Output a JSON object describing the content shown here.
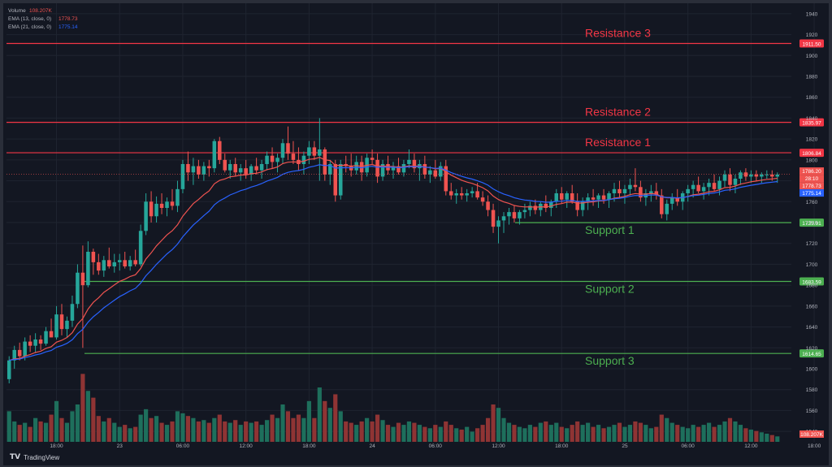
{
  "brand": {
    "name": "TradingView",
    "logo": "TV"
  },
  "legend": {
    "volume": {
      "label": "Volume",
      "value": "108.207K",
      "color": "#ef5350"
    },
    "ema13": {
      "label": "EMA (13, close, 0)",
      "value": "1778.73",
      "color": "#ef5350"
    },
    "ema21": {
      "label": "EMA (21, close, 0)",
      "value": "1775.14",
      "color": "#2962ff"
    }
  },
  "colors": {
    "up": "#26a69a",
    "down": "#ef5350",
    "vol_up": "#1e6f5c",
    "vol_down": "#8f3434",
    "support": "#4caf50",
    "resistance": "#f23645",
    "bg": "#131722",
    "grid": "#1f2430",
    "text": "#b2b5be"
  },
  "chart_data": {
    "type": "candlestick",
    "ylim": [
      1530,
      1950
    ],
    "y_ticks": [
      1540,
      1560,
      1580,
      1600,
      1620,
      1640,
      1660,
      1680,
      1700,
      1720,
      1740,
      1760,
      1780,
      1800,
      1820,
      1840,
      1860,
      1880,
      1900,
      1920,
      1940
    ],
    "x_ticks": [
      {
        "label": "18:00",
        "i": 9
      },
      {
        "label": "23",
        "i": 21
      },
      {
        "label": "06:00",
        "i": 33
      },
      {
        "label": "12:00",
        "i": 45
      },
      {
        "label": "18:00",
        "i": 57
      },
      {
        "label": "24",
        "i": 69
      },
      {
        "label": "06:00",
        "i": 81
      },
      {
        "label": "12:00",
        "i": 93
      },
      {
        "label": "18:00",
        "i": 105
      },
      {
        "label": "25",
        "i": 117
      },
      {
        "label": "06:00",
        "i": 129
      },
      {
        "label": "12:00",
        "i": 141
      },
      {
        "label": "18:00",
        "i": 153
      }
    ],
    "levels": [
      {
        "name": "Resistance 3",
        "value": 1911.5,
        "label": "1911.50",
        "kind": "resistance"
      },
      {
        "name": "Resistance 2",
        "value": 1835.97,
        "label": "1835.97",
        "kind": "resistance"
      },
      {
        "name": "Resistance 1",
        "value": 1806.84,
        "label": "1806.84",
        "kind": "resistance"
      },
      {
        "name": "Support 1",
        "value": 1739.91,
        "label": "1739.91",
        "kind": "support"
      },
      {
        "name": "Support 2",
        "value": 1683.59,
        "label": "1683.59",
        "kind": "support"
      },
      {
        "name": "Support 3",
        "value": 1614.65,
        "label": "1614.65",
        "kind": "support"
      }
    ],
    "price_labels": [
      {
        "value": 1786.2,
        "label": "1786.20",
        "color": "#ef5350"
      },
      {
        "value": 1782.0,
        "label": "28:10",
        "color": "#ef5350"
      },
      {
        "value": 1778.73,
        "label": "1778.73",
        "color": "#ef5350"
      },
      {
        "value": 1775.14,
        "label": "1775.14",
        "color": "#2962ff"
      }
    ],
    "volume_label": "108.207K",
    "volume_max": 110,
    "candles": [
      [
        1590,
        1612,
        1586,
        1608,
        45
      ],
      [
        1608,
        1622,
        1600,
        1618,
        30
      ],
      [
        1618,
        1625,
        1608,
        1612,
        25
      ],
      [
        1612,
        1630,
        1608,
        1626,
        28
      ],
      [
        1626,
        1632,
        1616,
        1622,
        22
      ],
      [
        1622,
        1634,
        1615,
        1628,
        35
      ],
      [
        1628,
        1632,
        1618,
        1624,
        30
      ],
      [
        1624,
        1640,
        1622,
        1636,
        28
      ],
      [
        1636,
        1648,
        1630,
        1630,
        40
      ],
      [
        1630,
        1660,
        1628,
        1652,
        60
      ],
      [
        1652,
        1662,
        1632,
        1638,
        35
      ],
      [
        1638,
        1650,
        1630,
        1646,
        28
      ],
      [
        1646,
        1670,
        1640,
        1662,
        45
      ],
      [
        1662,
        1700,
        1658,
        1692,
        55
      ],
      [
        1692,
        1718,
        1620,
        1680,
        100
      ],
      [
        1680,
        1722,
        1678,
        1712,
        75
      ],
      [
        1712,
        1715,
        1690,
        1702,
        65
      ],
      [
        1702,
        1710,
        1690,
        1694,
        38
      ],
      [
        1694,
        1708,
        1688,
        1704,
        30
      ],
      [
        1704,
        1716,
        1696,
        1698,
        35
      ],
      [
        1698,
        1710,
        1692,
        1702,
        28
      ],
      [
        1702,
        1710,
        1694,
        1704,
        22
      ],
      [
        1704,
        1712,
        1696,
        1698,
        25
      ],
      [
        1698,
        1708,
        1694,
        1704,
        20
      ],
      [
        1704,
        1714,
        1698,
        1700,
        22
      ],
      [
        1700,
        1738,
        1698,
        1732,
        40
      ],
      [
        1732,
        1768,
        1728,
        1760,
        48
      ],
      [
        1760,
        1770,
        1740,
        1746,
        35
      ],
      [
        1746,
        1765,
        1740,
        1758,
        38
      ],
      [
        1758,
        1768,
        1748,
        1754,
        28
      ],
      [
        1754,
        1764,
        1746,
        1760,
        25
      ],
      [
        1760,
        1772,
        1752,
        1756,
        30
      ],
      [
        1756,
        1780,
        1750,
        1772,
        45
      ],
      [
        1772,
        1800,
        1768,
        1796,
        42
      ],
      [
        1796,
        1808,
        1780,
        1788,
        38
      ],
      [
        1788,
        1802,
        1776,
        1794,
        35
      ],
      [
        1794,
        1800,
        1782,
        1786,
        30
      ],
      [
        1786,
        1798,
        1780,
        1794,
        32
      ],
      [
        1794,
        1800,
        1784,
        1792,
        28
      ],
      [
        1792,
        1820,
        1788,
        1818,
        35
      ],
      [
        1818,
        1822,
        1796,
        1800,
        40
      ],
      [
        1800,
        1806,
        1788,
        1790,
        30
      ],
      [
        1790,
        1800,
        1782,
        1796,
        28
      ],
      [
        1796,
        1802,
        1784,
        1788,
        32
      ],
      [
        1788,
        1796,
        1780,
        1792,
        25
      ],
      [
        1792,
        1800,
        1782,
        1786,
        30
      ],
      [
        1786,
        1796,
        1780,
        1794,
        28
      ],
      [
        1794,
        1802,
        1786,
        1790,
        30
      ],
      [
        1790,
        1800,
        1782,
        1796,
        25
      ],
      [
        1796,
        1808,
        1790,
        1804,
        32
      ],
      [
        1804,
        1812,
        1792,
        1798,
        40
      ],
      [
        1798,
        1806,
        1788,
        1802,
        35
      ],
      [
        1802,
        1820,
        1796,
        1816,
        55
      ],
      [
        1816,
        1832,
        1800,
        1806,
        45
      ],
      [
        1806,
        1818,
        1796,
        1800,
        35
      ],
      [
        1800,
        1812,
        1790,
        1796,
        40
      ],
      [
        1796,
        1808,
        1786,
        1804,
        35
      ],
      [
        1804,
        1818,
        1796,
        1812,
        60
      ],
      [
        1812,
        1818,
        1800,
        1804,
        35
      ],
      [
        1804,
        1840,
        1780,
        1810,
        80
      ],
      [
        1810,
        1812,
        1780,
        1786,
        60
      ],
      [
        1786,
        1800,
        1776,
        1796,
        50
      ],
      [
        1796,
        1800,
        1760,
        1766,
        70
      ],
      [
        1766,
        1800,
        1762,
        1796,
        45
      ],
      [
        1796,
        1804,
        1788,
        1794,
        30
      ],
      [
        1794,
        1806,
        1784,
        1790,
        28
      ],
      [
        1790,
        1804,
        1786,
        1798,
        25
      ],
      [
        1798,
        1804,
        1780,
        1788,
        30
      ],
      [
        1788,
        1806,
        1784,
        1802,
        35
      ],
      [
        1802,
        1810,
        1796,
        1800,
        30
      ],
      [
        1800,
        1806,
        1778,
        1784,
        40
      ],
      [
        1784,
        1800,
        1780,
        1796,
        32
      ],
      [
        1796,
        1804,
        1786,
        1790,
        25
      ],
      [
        1790,
        1798,
        1782,
        1794,
        22
      ],
      [
        1794,
        1802,
        1786,
        1788,
        28
      ],
      [
        1788,
        1800,
        1784,
        1796,
        25
      ],
      [
        1796,
        1810,
        1792,
        1800,
        30
      ],
      [
        1800,
        1806,
        1788,
        1792,
        28
      ],
      [
        1792,
        1800,
        1780,
        1796,
        25
      ],
      [
        1796,
        1804,
        1782,
        1786,
        22
      ],
      [
        1786,
        1794,
        1778,
        1790,
        20
      ],
      [
        1790,
        1800,
        1782,
        1784,
        25
      ],
      [
        1784,
        1798,
        1780,
        1794,
        22
      ],
      [
        1794,
        1800,
        1766,
        1770,
        30
      ],
      [
        1770,
        1778,
        1762,
        1766,
        25
      ],
      [
        1766,
        1772,
        1758,
        1768,
        20
      ],
      [
        1768,
        1774,
        1762,
        1766,
        18
      ],
      [
        1766,
        1772,
        1760,
        1768,
        22
      ],
      [
        1768,
        1774,
        1764,
        1770,
        15
      ],
      [
        1770,
        1778,
        1762,
        1764,
        20
      ],
      [
        1764,
        1770,
        1756,
        1760,
        25
      ],
      [
        1760,
        1766,
        1746,
        1752,
        35
      ],
      [
        1752,
        1758,
        1730,
        1736,
        55
      ],
      [
        1736,
        1746,
        1720,
        1742,
        50
      ],
      [
        1742,
        1750,
        1730,
        1746,
        35
      ],
      [
        1746,
        1754,
        1738,
        1750,
        28
      ],
      [
        1750,
        1756,
        1740,
        1744,
        25
      ],
      [
        1744,
        1752,
        1738,
        1750,
        22
      ],
      [
        1750,
        1758,
        1744,
        1752,
        20
      ],
      [
        1752,
        1760,
        1746,
        1756,
        25
      ],
      [
        1756,
        1762,
        1748,
        1752,
        22
      ],
      [
        1752,
        1760,
        1746,
        1758,
        28
      ],
      [
        1758,
        1766,
        1750,
        1754,
        30
      ],
      [
        1754,
        1762,
        1746,
        1760,
        25
      ],
      [
        1760,
        1772,
        1754,
        1768,
        28
      ],
      [
        1768,
        1774,
        1758,
        1762,
        22
      ],
      [
        1762,
        1770,
        1754,
        1768,
        20
      ],
      [
        1768,
        1776,
        1758,
        1760,
        25
      ],
      [
        1760,
        1768,
        1746,
        1752,
        30
      ],
      [
        1752,
        1764,
        1746,
        1760,
        25
      ],
      [
        1760,
        1768,
        1752,
        1764,
        28
      ],
      [
        1764,
        1772,
        1756,
        1762,
        22
      ],
      [
        1762,
        1768,
        1754,
        1766,
        25
      ],
      [
        1766,
        1772,
        1758,
        1762,
        20
      ],
      [
        1762,
        1770,
        1754,
        1768,
        22
      ],
      [
        1768,
        1778,
        1760,
        1772,
        25
      ],
      [
        1772,
        1780,
        1764,
        1768,
        28
      ],
      [
        1768,
        1776,
        1758,
        1772,
        22
      ],
      [
        1772,
        1782,
        1766,
        1776,
        25
      ],
      [
        1776,
        1792,
        1770,
        1774,
        30
      ],
      [
        1774,
        1780,
        1760,
        1764,
        28
      ],
      [
        1764,
        1772,
        1756,
        1768,
        25
      ],
      [
        1768,
        1776,
        1760,
        1770,
        20
      ],
      [
        1770,
        1778,
        1762,
        1766,
        22
      ],
      [
        1766,
        1772,
        1744,
        1748,
        40
      ],
      [
        1748,
        1762,
        1742,
        1758,
        35
      ],
      [
        1758,
        1768,
        1752,
        1764,
        28
      ],
      [
        1764,
        1772,
        1756,
        1760,
        25
      ],
      [
        1760,
        1770,
        1752,
        1768,
        22
      ],
      [
        1768,
        1776,
        1760,
        1772,
        20
      ],
      [
        1772,
        1780,
        1764,
        1776,
        25
      ],
      [
        1776,
        1784,
        1768,
        1770,
        22
      ],
      [
        1770,
        1778,
        1762,
        1774,
        25
      ],
      [
        1774,
        1782,
        1766,
        1778,
        28
      ],
      [
        1778,
        1786,
        1770,
        1772,
        22
      ],
      [
        1772,
        1784,
        1766,
        1780,
        25
      ],
      [
        1780,
        1790,
        1774,
        1786,
        30
      ],
      [
        1786,
        1792,
        1770,
        1776,
        35
      ],
      [
        1776,
        1786,
        1768,
        1782,
        30
      ],
      [
        1782,
        1790,
        1776,
        1788,
        25
      ],
      [
        1788,
        1792,
        1780,
        1784,
        20
      ],
      [
        1784,
        1790,
        1778,
        1786,
        18
      ],
      [
        1786,
        1790,
        1780,
        1784,
        16
      ],
      [
        1784,
        1788,
        1778,
        1786,
        14
      ],
      [
        1786,
        1790,
        1782,
        1786,
        12
      ],
      [
        1786,
        1790,
        1780,
        1784,
        10
      ],
      [
        1784,
        1788,
        1778,
        1786,
        8
      ]
    ]
  }
}
